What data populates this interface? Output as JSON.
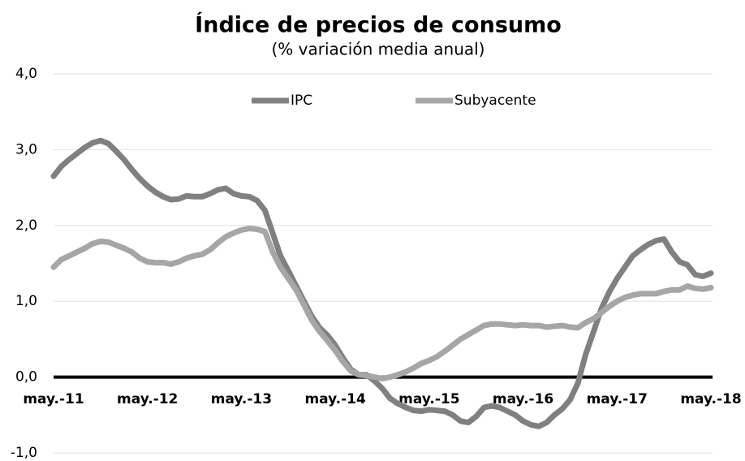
{
  "chart_data": {
    "type": "line",
    "title": "Índice de precios de consumo",
    "subtitle": "(% variación media anual)",
    "categories": [
      "may.-11",
      null,
      null,
      null,
      null,
      null,
      null,
      null,
      null,
      null,
      null,
      null,
      "may.-12",
      null,
      null,
      null,
      null,
      null,
      null,
      null,
      null,
      null,
      null,
      null,
      "may.-13",
      null,
      null,
      null,
      null,
      null,
      null,
      null,
      null,
      null,
      null,
      null,
      "may.-14",
      null,
      null,
      null,
      null,
      null,
      null,
      null,
      null,
      null,
      null,
      null,
      "may.-15",
      null,
      null,
      null,
      null,
      null,
      null,
      null,
      null,
      null,
      null,
      null,
      "may.-16",
      null,
      null,
      null,
      null,
      null,
      null,
      null,
      null,
      null,
      null,
      null,
      "may.-17",
      null,
      null,
      null,
      null,
      null,
      null,
      null,
      null,
      null,
      null,
      null,
      "may.-18"
    ],
    "series": [
      {
        "name": "IPC",
        "color": "#808080",
        "values": [
          2.65,
          2.78,
          2.87,
          2.95,
          3.03,
          3.09,
          3.12,
          3.08,
          2.98,
          2.87,
          2.74,
          2.62,
          2.52,
          2.44,
          2.38,
          2.34,
          2.35,
          2.39,
          2.38,
          2.38,
          2.42,
          2.47,
          2.49,
          2.42,
          2.39,
          2.38,
          2.33,
          2.2,
          1.9,
          1.6,
          1.4,
          1.2,
          1.0,
          0.8,
          0.65,
          0.55,
          0.42,
          0.25,
          0.1,
          0.03,
          0.03,
          -0.05,
          -0.15,
          -0.28,
          -0.35,
          -0.4,
          -0.44,
          -0.45,
          -0.43,
          -0.44,
          -0.45,
          -0.5,
          -0.58,
          -0.6,
          -0.52,
          -0.4,
          -0.38,
          -0.4,
          -0.45,
          -0.5,
          -0.58,
          -0.63,
          -0.65,
          -0.6,
          -0.5,
          -0.42,
          -0.3,
          -0.08,
          0.3,
          0.6,
          0.9,
          1.12,
          1.3,
          1.45,
          1.6,
          1.68,
          1.75,
          1.8,
          1.82,
          1.65,
          1.52,
          1.48,
          1.35,
          1.33,
          1.37
        ]
      },
      {
        "name": "Subyacente",
        "color": "#a6a6a6",
        "values": [
          1.45,
          1.55,
          1.6,
          1.65,
          1.7,
          1.76,
          1.79,
          1.78,
          1.74,
          1.7,
          1.65,
          1.57,
          1.52,
          1.51,
          1.51,
          1.49,
          1.52,
          1.57,
          1.6,
          1.62,
          1.68,
          1.77,
          1.85,
          1.9,
          1.94,
          1.96,
          1.95,
          1.92,
          1.65,
          1.45,
          1.3,
          1.15,
          0.95,
          0.75,
          0.6,
          0.48,
          0.35,
          0.2,
          0.08,
          0.03,
          0.02,
          0.0,
          -0.02,
          0.0,
          0.03,
          0.07,
          0.12,
          0.18,
          0.22,
          0.27,
          0.34,
          0.42,
          0.5,
          0.56,
          0.62,
          0.68,
          0.7,
          0.7,
          0.69,
          0.68,
          0.69,
          0.68,
          0.68,
          0.66,
          0.67,
          0.68,
          0.66,
          0.65,
          0.72,
          0.77,
          0.85,
          0.93,
          1.0,
          1.05,
          1.08,
          1.1,
          1.1,
          1.1,
          1.13,
          1.15,
          1.15,
          1.2,
          1.17,
          1.16,
          1.18
        ]
      }
    ],
    "ylim": [
      -1,
      4
    ],
    "yticks": [
      {
        "value": -1,
        "label": "-1,0"
      },
      {
        "value": 0,
        "label": "0,0"
      },
      {
        "value": 1,
        "label": "1,0"
      },
      {
        "value": 2,
        "label": "2,0"
      },
      {
        "value": 3,
        "label": "3,0"
      },
      {
        "value": 4,
        "label": "4,0"
      }
    ],
    "grid": true,
    "legend": "top"
  }
}
